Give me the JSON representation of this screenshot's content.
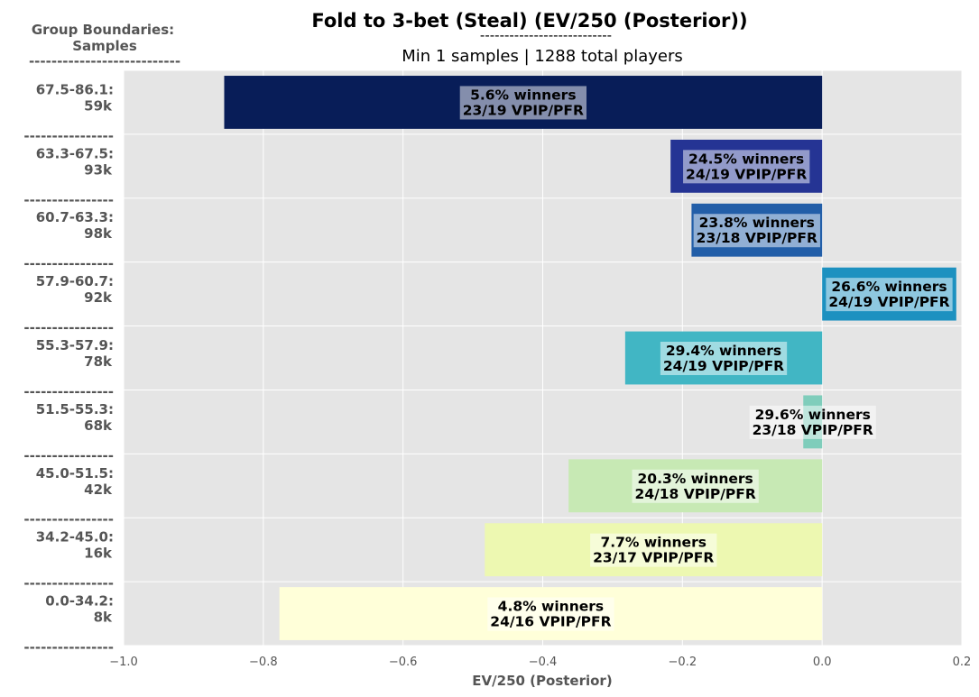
{
  "chart_data": {
    "type": "bar",
    "orientation": "horizontal",
    "title": "Fold to 3-bet (Steal) (EV/250 (Posterior))",
    "title_rule": "---------------------------",
    "subtitle": "Min 1 samples | 1288 total players",
    "group_header": [
      "Group Boundaries:",
      "Samples"
    ],
    "group_header_rule": "---------------------------",
    "separator": "----------------",
    "xlabel": "EV/250 (Posterior)",
    "xlim": [
      -1.0,
      0.2
    ],
    "xticks": [
      "−1.0",
      "−0.8",
      "−0.6",
      "−0.4",
      "−0.2",
      "0.0",
      "0.2"
    ],
    "xtick_values": [
      -1.0,
      -0.8,
      -0.6,
      -0.4,
      -0.2,
      0.0,
      0.2
    ],
    "grid": true,
    "bars": [
      {
        "group": "67.5-86.1:",
        "samples": "59k",
        "value": -0.856,
        "winners": "5.6% winners",
        "vpip": "23/19 VPIP/PFR",
        "color": "#081d58"
      },
      {
        "group": "63.3-67.5:",
        "samples": "93k",
        "value": -0.217,
        "winners": "24.5% winners",
        "vpip": "24/19 VPIP/PFR",
        "color": "#253494"
      },
      {
        "group": "60.7-63.3:",
        "samples": "98k",
        "value": -0.187,
        "winners": "23.8% winners",
        "vpip": "23/18 VPIP/PFR",
        "color": "#225ea8"
      },
      {
        "group": "57.9-60.7:",
        "samples": "92k",
        "value": 0.192,
        "winners": "26.6% winners",
        "vpip": "24/19 VPIP/PFR",
        "color": "#1d91c0"
      },
      {
        "group": "55.3-57.9:",
        "samples": "78k",
        "value": -0.282,
        "winners": "29.4% winners",
        "vpip": "24/19 VPIP/PFR",
        "color": "#41b6c4"
      },
      {
        "group": "51.5-55.3:",
        "samples": "68k",
        "value": -0.027,
        "winners": "29.6% winners",
        "vpip": "23/18 VPIP/PFR",
        "color": "#7fcdbb"
      },
      {
        "group": "45.0-51.5:",
        "samples": "42k",
        "value": -0.363,
        "winners": "20.3% winners",
        "vpip": "24/18 VPIP/PFR",
        "color": "#c7e9b4"
      },
      {
        "group": "34.2-45.0:",
        "samples": "16k",
        "value": -0.483,
        "winners": "7.7% winners",
        "vpip": "23/17 VPIP/PFR",
        "color": "#edf8b1"
      },
      {
        "group": "0.0-34.2:",
        "samples": "8k",
        "value": -0.777,
        "winners": "4.8% winners",
        "vpip": "24/16 VPIP/PFR",
        "color": "#ffffd9"
      }
    ]
  }
}
